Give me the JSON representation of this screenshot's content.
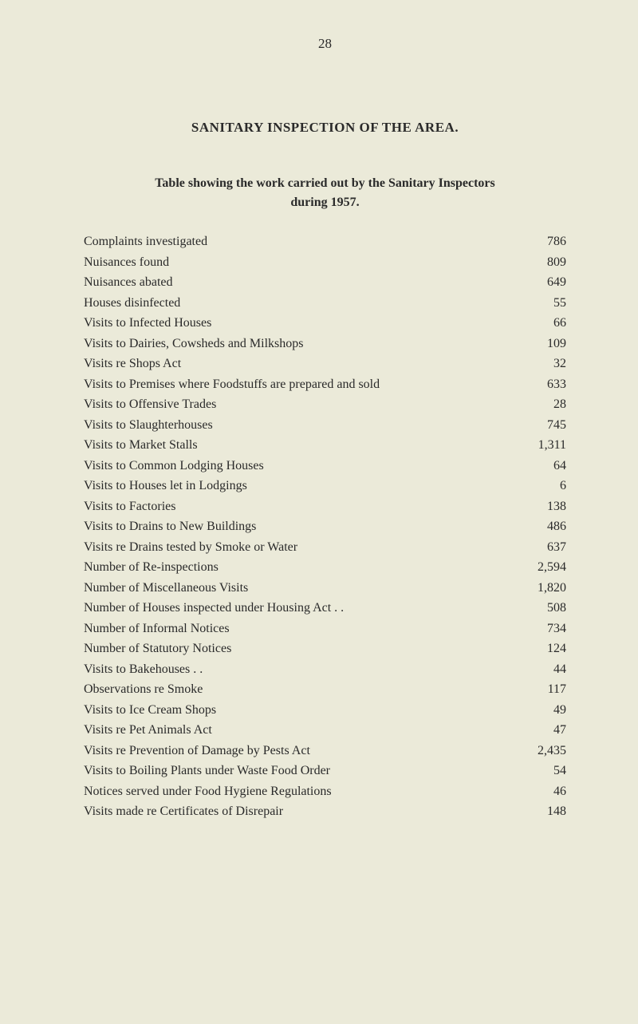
{
  "pageNumber": "28",
  "title": "SANITARY INSPECTION OF THE AREA.",
  "subtitle_line1": "Table showing the work carried out by the Sanitary Inspectors",
  "subtitle_line2": "during 1957.",
  "rows": [
    {
      "label": "Complaints investigated",
      "dots": ". .    . .    . .    . .    . .",
      "value": "786"
    },
    {
      "label": "Nuisances found",
      "dots": ". .    . .    . .    . .    . .    . .",
      "value": "809"
    },
    {
      "label": "Nuisances abated",
      "dots": ". .    . .    . .    . .    . .    . .",
      "value": "649"
    },
    {
      "label": "Houses disinfected",
      "dots": ". .    . .    . .    . .    . .    . .",
      "value": "55"
    },
    {
      "label": "Visits to Infected Houses",
      "dots": ". .    . .    . .    . .    . .",
      "value": "66"
    },
    {
      "label": "Visits to Dairies, Cowsheds and Milkshops",
      "dots": ". .    . .",
      "value": "109"
    },
    {
      "label": "Visits re Shops Act",
      "dots": ". .    . .    . .    . .    . .    . .",
      "value": "32"
    },
    {
      "label": "Visits to Premises where Foodstuffs are prepared and sold",
      "dots": "",
      "value": "633"
    },
    {
      "label": "Visits to Offensive Trades",
      "dots": ". .    . .    . .    . .    . .",
      "value": "28"
    },
    {
      "label": "Visits to Slaughterhouses",
      "dots": ". .    . .    . .    . .    . .",
      "value": "745"
    },
    {
      "label": "Visits to Market Stalls",
      "dots": ". .    . .    . .    . .    . .",
      "value": "1,311"
    },
    {
      "label": "Visits to Common Lodging Houses",
      "dots": ". .    . .    . .",
      "value": "64"
    },
    {
      "label": "Visits to Houses let in Lodgings",
      "dots": ". .    . .    . .    . .",
      "value": "6"
    },
    {
      "label": "Visits to Factories",
      "dots": ". .    . .    . .    . .    . .    . .",
      "value": "138"
    },
    {
      "label": "Visits to Drains to New Buildings",
      "dots": ". .    . .    . .",
      "value": "486"
    },
    {
      "label": "Visits re Drains tested by Smoke or Water",
      "dots": ". .    . .",
      "value": "637"
    },
    {
      "label": "Number of Re-inspections",
      "dots": ". .    . .    . .    . .    . .",
      "value": "2,594"
    },
    {
      "label": "Number of Miscellaneous Visits",
      "dots": ". .    . .    . .    . .",
      "value": "1,820"
    },
    {
      "label": "Number of Houses inspected under Housing Act . .",
      "dots": ". .",
      "value": "508"
    },
    {
      "label": "Number of Informal Notices",
      "dots": ". .    . .    . .    . .",
      "value": "734"
    },
    {
      "label": "Number of Statutory Notices",
      "dots": ". .    . .    . .    . .",
      "value": "124"
    },
    {
      "label": "Visits to Bakehouses . .",
      "dots": ". .    . .    . .    . .    . .",
      "value": "44"
    },
    {
      "label": "Observations re Smoke",
      "dots": ". .    . .    . .    . .    . .",
      "value": "117"
    },
    {
      "label": "Visits to Ice Cream Shops",
      "dots": ". .    . .    . .    . .    . .",
      "value": "49"
    },
    {
      "label": "Visits re Pet Animals Act",
      "dots": ". .    . .    . .    . .    . .",
      "value": "47"
    },
    {
      "label": "Visits re Prevention of Damage by Pests Act",
      "dots": ". .    . .",
      "value": "2,435"
    },
    {
      "label": "Visits to Boiling Plants under Waste Food Order",
      "dots": ". .",
      "value": "54"
    },
    {
      "label": "Notices served under Food Hygiene Regulations",
      "dots": ". .",
      "value": "46"
    },
    {
      "label": "Visits made re Certificates of Disrepair",
      "dots": ". .    . .    . .",
      "value": "148"
    }
  ]
}
